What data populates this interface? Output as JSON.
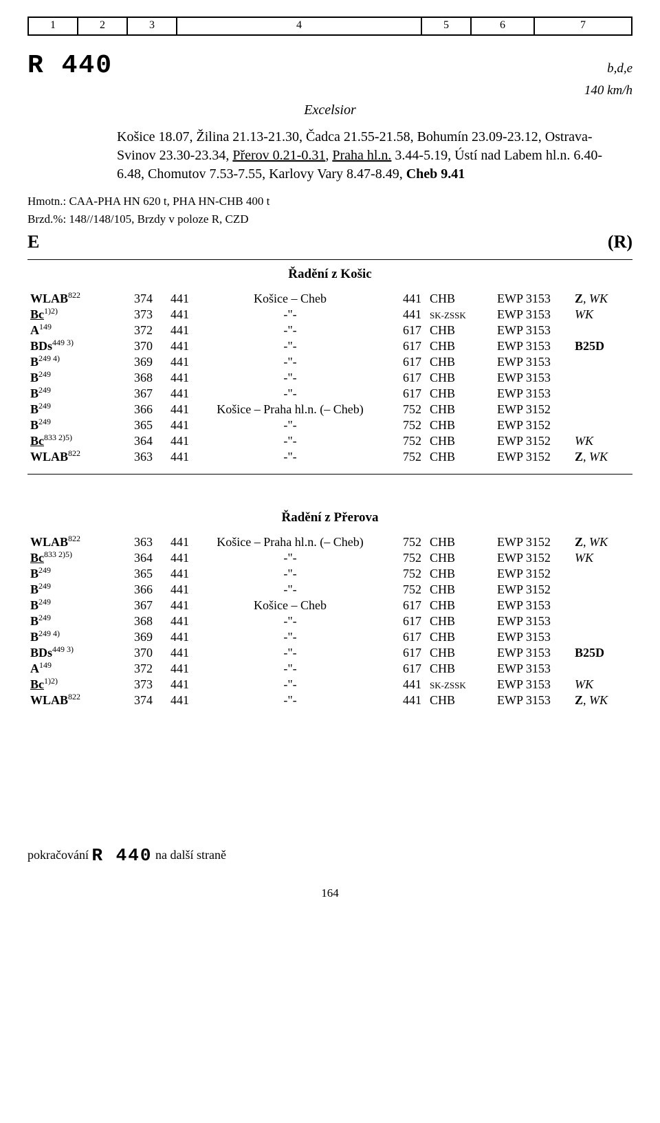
{
  "ruler": [
    "1",
    "2",
    "3",
    "4",
    "5",
    "6",
    "7"
  ],
  "train": {
    "number": "R 440",
    "flags": "b,d,e",
    "speed": "140 km/h",
    "name": "Excelsior"
  },
  "route_html": "Košice 18.07, Žilina 21.13-21.30, Čadca 21.55-21.58, Bohumín 23.09-23.12, Ostrava-Svinov 23.30-23.34, <span class=\"underline\">Přerov 0.21-0.31</span>, <span class=\"underline\">Praha hl.n.</span> 3.44-5.19, Ústí nad Labem hl.n. 6.40-6.48, Chomutov 7.53-7.55, Karlovy Vary 8.47-8.49, <span class=\"bold\">Cheb 9.41</span>",
  "meta": {
    "line1": "Hmotn.: CAA-PHA HN 620 t, PHA HN-CHB 400 t",
    "line2": "Brzd.%: 148//148/105, Brzdy v poloze R, CZD"
  },
  "e_left": "E",
  "e_right": "(R)",
  "section1_title": "Řadění z Košic",
  "section2_title": "Řadění z Přerova",
  "rows1": [
    {
      "typ": "WLAB",
      "sup": "822",
      "u": false,
      "b": true,
      "n1": "374",
      "n2": "441",
      "rel": "Košice – Cheb",
      "km": "441",
      "op": "CHB",
      "ewp": "EWP 3153",
      "notes": "<span class=\"bold\">Z</span>, <span class=\"i\">WK</span>"
    },
    {
      "typ": "Bc",
      "sup": "1)2)",
      "u": true,
      "b": true,
      "n1": "373",
      "n2": "441",
      "rel": "-\"-",
      "km": "441",
      "op": "SK-ZSSK",
      "ewp": "EWP 3153",
      "notes": "<span class=\"i\">WK</span>"
    },
    {
      "typ": "A",
      "sup": "149",
      "u": false,
      "b": true,
      "n1": "372",
      "n2": "441",
      "rel": "-\"-",
      "km": "617",
      "op": "CHB",
      "ewp": "EWP 3153",
      "notes": ""
    },
    {
      "typ": "BDs",
      "sup": "449 3)",
      "u": false,
      "b": true,
      "n1": "370",
      "n2": "441",
      "rel": "-\"-",
      "km": "617",
      "op": "CHB",
      "ewp": "EWP 3153",
      "notes": "<span class=\"bold\">B25D</span>"
    },
    {
      "typ": "B",
      "sup": "249 4)",
      "u": false,
      "b": true,
      "n1": "369",
      "n2": "441",
      "rel": "-\"-",
      "km": "617",
      "op": "CHB",
      "ewp": "EWP 3153",
      "notes": ""
    },
    {
      "typ": "B",
      "sup": "249",
      "u": false,
      "b": true,
      "n1": "368",
      "n2": "441",
      "rel": "-\"-",
      "km": "617",
      "op": "CHB",
      "ewp": "EWP 3153",
      "notes": ""
    },
    {
      "typ": "B",
      "sup": "249",
      "u": false,
      "b": true,
      "n1": "367",
      "n2": "441",
      "rel": "-\"-",
      "km": "617",
      "op": "CHB",
      "ewp": "EWP 3153",
      "notes": ""
    },
    {
      "typ": "B",
      "sup": "249",
      "u": false,
      "b": true,
      "n1": "366",
      "n2": "441",
      "rel": "Košice – Praha hl.n. (– Cheb)",
      "km": "752",
      "op": "CHB",
      "ewp": "EWP 3152",
      "notes": ""
    },
    {
      "typ": "B",
      "sup": "249",
      "u": false,
      "b": true,
      "n1": "365",
      "n2": "441",
      "rel": "-\"-",
      "km": "752",
      "op": "CHB",
      "ewp": "EWP 3152",
      "notes": ""
    },
    {
      "typ": "Bc",
      "sup": "833 2)5)",
      "u": true,
      "b": true,
      "n1": "364",
      "n2": "441",
      "rel": "-\"-",
      "km": "752",
      "op": "CHB",
      "ewp": "EWP 3152",
      "notes": "<span class=\"i\">WK</span>"
    },
    {
      "typ": "WLAB",
      "sup": "822",
      "u": false,
      "b": true,
      "n1": "363",
      "n2": "441",
      "rel": "-\"-",
      "km": "752",
      "op": "CHB",
      "ewp": "EWP 3152",
      "notes": "<span class=\"bold\">Z</span>, <span class=\"i\">WK</span>"
    }
  ],
  "rows2": [
    {
      "typ": "WLAB",
      "sup": "822",
      "u": false,
      "b": true,
      "n1": "363",
      "n2": "441",
      "rel": "Košice – Praha hl.n. (– Cheb)",
      "km": "752",
      "op": "CHB",
      "ewp": "EWP 3152",
      "notes": "<span class=\"bold\">Z</span>, <span class=\"i\">WK</span>"
    },
    {
      "typ": "Bc",
      "sup": "833 2)5)",
      "u": true,
      "b": true,
      "n1": "364",
      "n2": "441",
      "rel": "-\"-",
      "km": "752",
      "op": "CHB",
      "ewp": "EWP 3152",
      "notes": "<span class=\"i\">WK</span>"
    },
    {
      "typ": "B",
      "sup": "249",
      "u": false,
      "b": true,
      "n1": "365",
      "n2": "441",
      "rel": "-\"-",
      "km": "752",
      "op": "CHB",
      "ewp": "EWP 3152",
      "notes": ""
    },
    {
      "typ": "B",
      "sup": "249",
      "u": false,
      "b": true,
      "n1": "366",
      "n2": "441",
      "rel": "-\"-",
      "km": "752",
      "op": "CHB",
      "ewp": "EWP 3152",
      "notes": ""
    },
    {
      "typ": "B",
      "sup": "249",
      "u": false,
      "b": true,
      "n1": "367",
      "n2": "441",
      "rel": "Košice – Cheb",
      "km": "617",
      "op": "CHB",
      "ewp": "EWP 3153",
      "notes": ""
    },
    {
      "typ": "B",
      "sup": "249",
      "u": false,
      "b": true,
      "n1": "368",
      "n2": "441",
      "rel": "-\"-",
      "km": "617",
      "op": "CHB",
      "ewp": "EWP 3153",
      "notes": ""
    },
    {
      "typ": "B",
      "sup": "249 4)",
      "u": false,
      "b": true,
      "n1": "369",
      "n2": "441",
      "rel": "-\"-",
      "km": "617",
      "op": "CHB",
      "ewp": "EWP 3153",
      "notes": ""
    },
    {
      "typ": "BDs",
      "sup": "449 3)",
      "u": false,
      "b": true,
      "n1": "370",
      "n2": "441",
      "rel": "-\"-",
      "km": "617",
      "op": "CHB",
      "ewp": "EWP 3153",
      "notes": "<span class=\"bold\">B25D</span>"
    },
    {
      "typ": "A",
      "sup": "149",
      "u": false,
      "b": true,
      "n1": "372",
      "n2": "441",
      "rel": "-\"-",
      "km": "617",
      "op": "CHB",
      "ewp": "EWP 3153",
      "notes": ""
    },
    {
      "typ": "Bc",
      "sup": "1)2)",
      "u": true,
      "b": true,
      "n1": "373",
      "n2": "441",
      "rel": "-\"-",
      "km": "441",
      "op": "SK-ZSSK",
      "ewp": "EWP 3153",
      "notes": "<span class=\"i\">WK</span>"
    },
    {
      "typ": "WLAB",
      "sup": "822",
      "u": false,
      "b": true,
      "n1": "374",
      "n2": "441",
      "rel": "-\"-",
      "km": "441",
      "op": "CHB",
      "ewp": "EWP 3153",
      "notes": "<span class=\"bold\">Z</span>, <span class=\"i\">WK</span>"
    }
  ],
  "cont_pre": "pokračování ",
  "cont_train": "R 440",
  "cont_post": " na další straně",
  "page": "164"
}
